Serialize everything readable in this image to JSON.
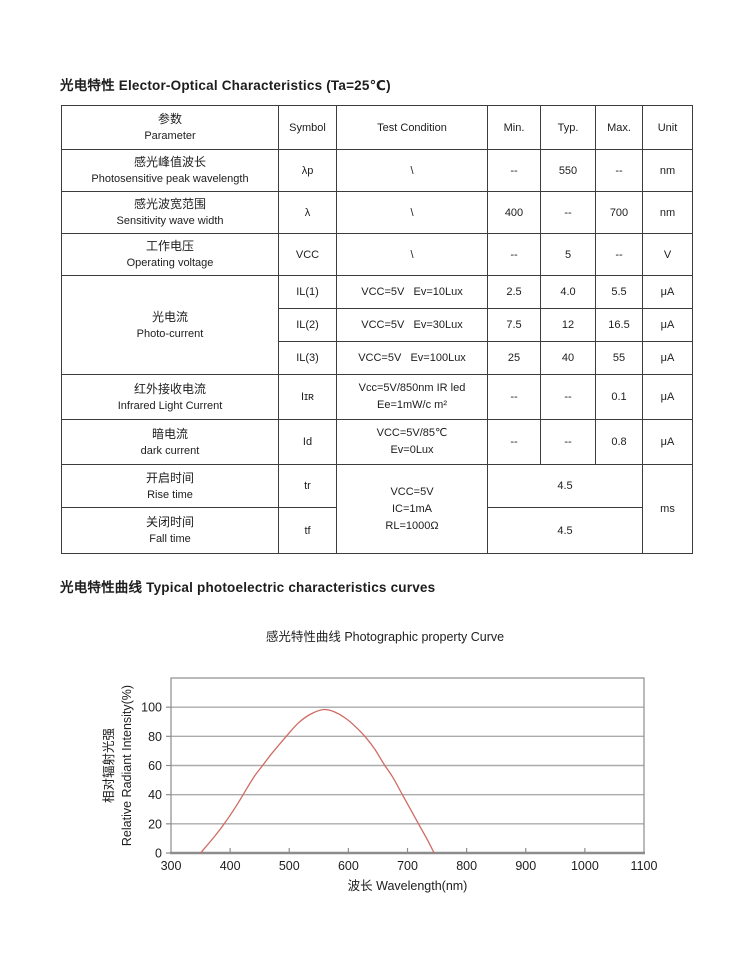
{
  "headings": {
    "electro_optical": "光电特性 Elector-Optical Characteristics (Ta=25℃)",
    "curves": "光电特性曲线 Typical photoelectric characteristics curves"
  },
  "table": {
    "header": {
      "param_cn": "参数",
      "param_en": "Parameter",
      "symbol": "Symbol",
      "test_condition": "Test Condition",
      "min": "Min.",
      "typ": "Typ.",
      "max": "Max.",
      "unit": "Unit"
    },
    "rows": {
      "peak": {
        "cn": "感光峰值波长",
        "en": "Photosensitive peak wavelength",
        "symbol": "λp",
        "cond": "\\",
        "min": "--",
        "typ": "550",
        "max": "--",
        "unit": "nm"
      },
      "range": {
        "cn": "感光波宽范围",
        "en": "Sensitivity wave width",
        "symbol": "λ",
        "cond": "\\",
        "min": "400",
        "typ": "--",
        "max": "700",
        "unit": "nm"
      },
      "voltage": {
        "cn": "工作电压",
        "en": "Operating voltage",
        "symbol": "VCC",
        "cond": "\\",
        "min": "--",
        "typ": "5",
        "max": "--",
        "unit": "V"
      },
      "photocurrent": {
        "cn": "光电流",
        "en": "Photo-current",
        "il1": {
          "symbol": "IL(1)",
          "cond": "VCC=5V   Ev=10Lux",
          "min": "2.5",
          "typ": "4.0",
          "max": "5.5",
          "unit": "μA"
        },
        "il2": {
          "symbol": "IL(2)",
          "cond": "VCC=5V   Ev=30Lux",
          "min": "7.5",
          "typ": "12",
          "max": "16.5",
          "unit": "μA"
        },
        "il3": {
          "symbol": "IL(3)",
          "cond": "VCC=5V   Ev=100Lux",
          "min": "25",
          "typ": "40",
          "max": "55",
          "unit": "μA"
        }
      },
      "infrared": {
        "cn": "红外接收电流",
        "en": "Infrared Light Current",
        "symbol": "Iɪʀ",
        "cond1": "Vcc=5V/850nm IR led",
        "cond2": "Ee=1mW/c m²",
        "min": "--",
        "typ": "--",
        "max": "0.1",
        "unit": "μA"
      },
      "dark": {
        "cn": "暗电流",
        "en": "dark current",
        "symbol": "Id",
        "cond1": "VCC=5V/85℃",
        "cond2": "Ev=0Lux",
        "min": "--",
        "typ": "--",
        "max": "0.8",
        "unit": "μA"
      },
      "rise": {
        "cn": "开启时间",
        "en": "Rise time",
        "symbol": "tr",
        "value": "4.5"
      },
      "fall": {
        "cn": "关闭时间",
        "en": "Fall time",
        "symbol": "tf",
        "value": "4.5"
      },
      "time_shared": {
        "cond1": "VCC=5V",
        "cond2": "IC=1mA",
        "cond3": "RL=1000Ω",
        "unit": "ms"
      }
    }
  },
  "chart_data": {
    "type": "line",
    "title": "感光特性曲线  Photographic property Curve",
    "xlabel": "波长  Wavelength(nm)",
    "ylabel_cn": "相对辐射光强",
    "ylabel_en": "Relative  Radiant Intensity(%)",
    "xlim": [
      300,
      1100
    ],
    "ylim": [
      0,
      120
    ],
    "xticks": [
      300,
      400,
      500,
      600,
      700,
      800,
      900,
      1000,
      1100
    ],
    "yticks": [
      0,
      20,
      40,
      60,
      80,
      100
    ],
    "grid": "horizontal",
    "legend": "none",
    "series": [
      {
        "name": "relative-spectral-response",
        "peak_x": 557,
        "peak_y": 98.3,
        "points": [
          [
            350,
            0
          ],
          [
            375,
            12
          ],
          [
            390,
            20
          ],
          [
            410,
            32
          ],
          [
            422,
            40
          ],
          [
            440,
            52
          ],
          [
            455,
            60
          ],
          [
            470,
            68
          ],
          [
            495,
            80
          ],
          [
            515,
            89
          ],
          [
            535,
            95
          ],
          [
            557,
            98.3
          ],
          [
            575,
            97
          ],
          [
            595,
            92.5
          ],
          [
            615,
            85.5
          ],
          [
            630,
            79
          ],
          [
            645,
            71
          ],
          [
            660,
            61
          ],
          [
            675,
            52
          ],
          [
            690,
            41
          ],
          [
            705,
            30
          ],
          [
            720,
            19
          ],
          [
            735,
            8
          ],
          [
            745,
            0
          ]
        ]
      }
    ],
    "colors": {
      "curve": "#d06a64",
      "grid": "#ababab",
      "axis": "#8c8c8c",
      "text": "#1d1d1d"
    }
  }
}
